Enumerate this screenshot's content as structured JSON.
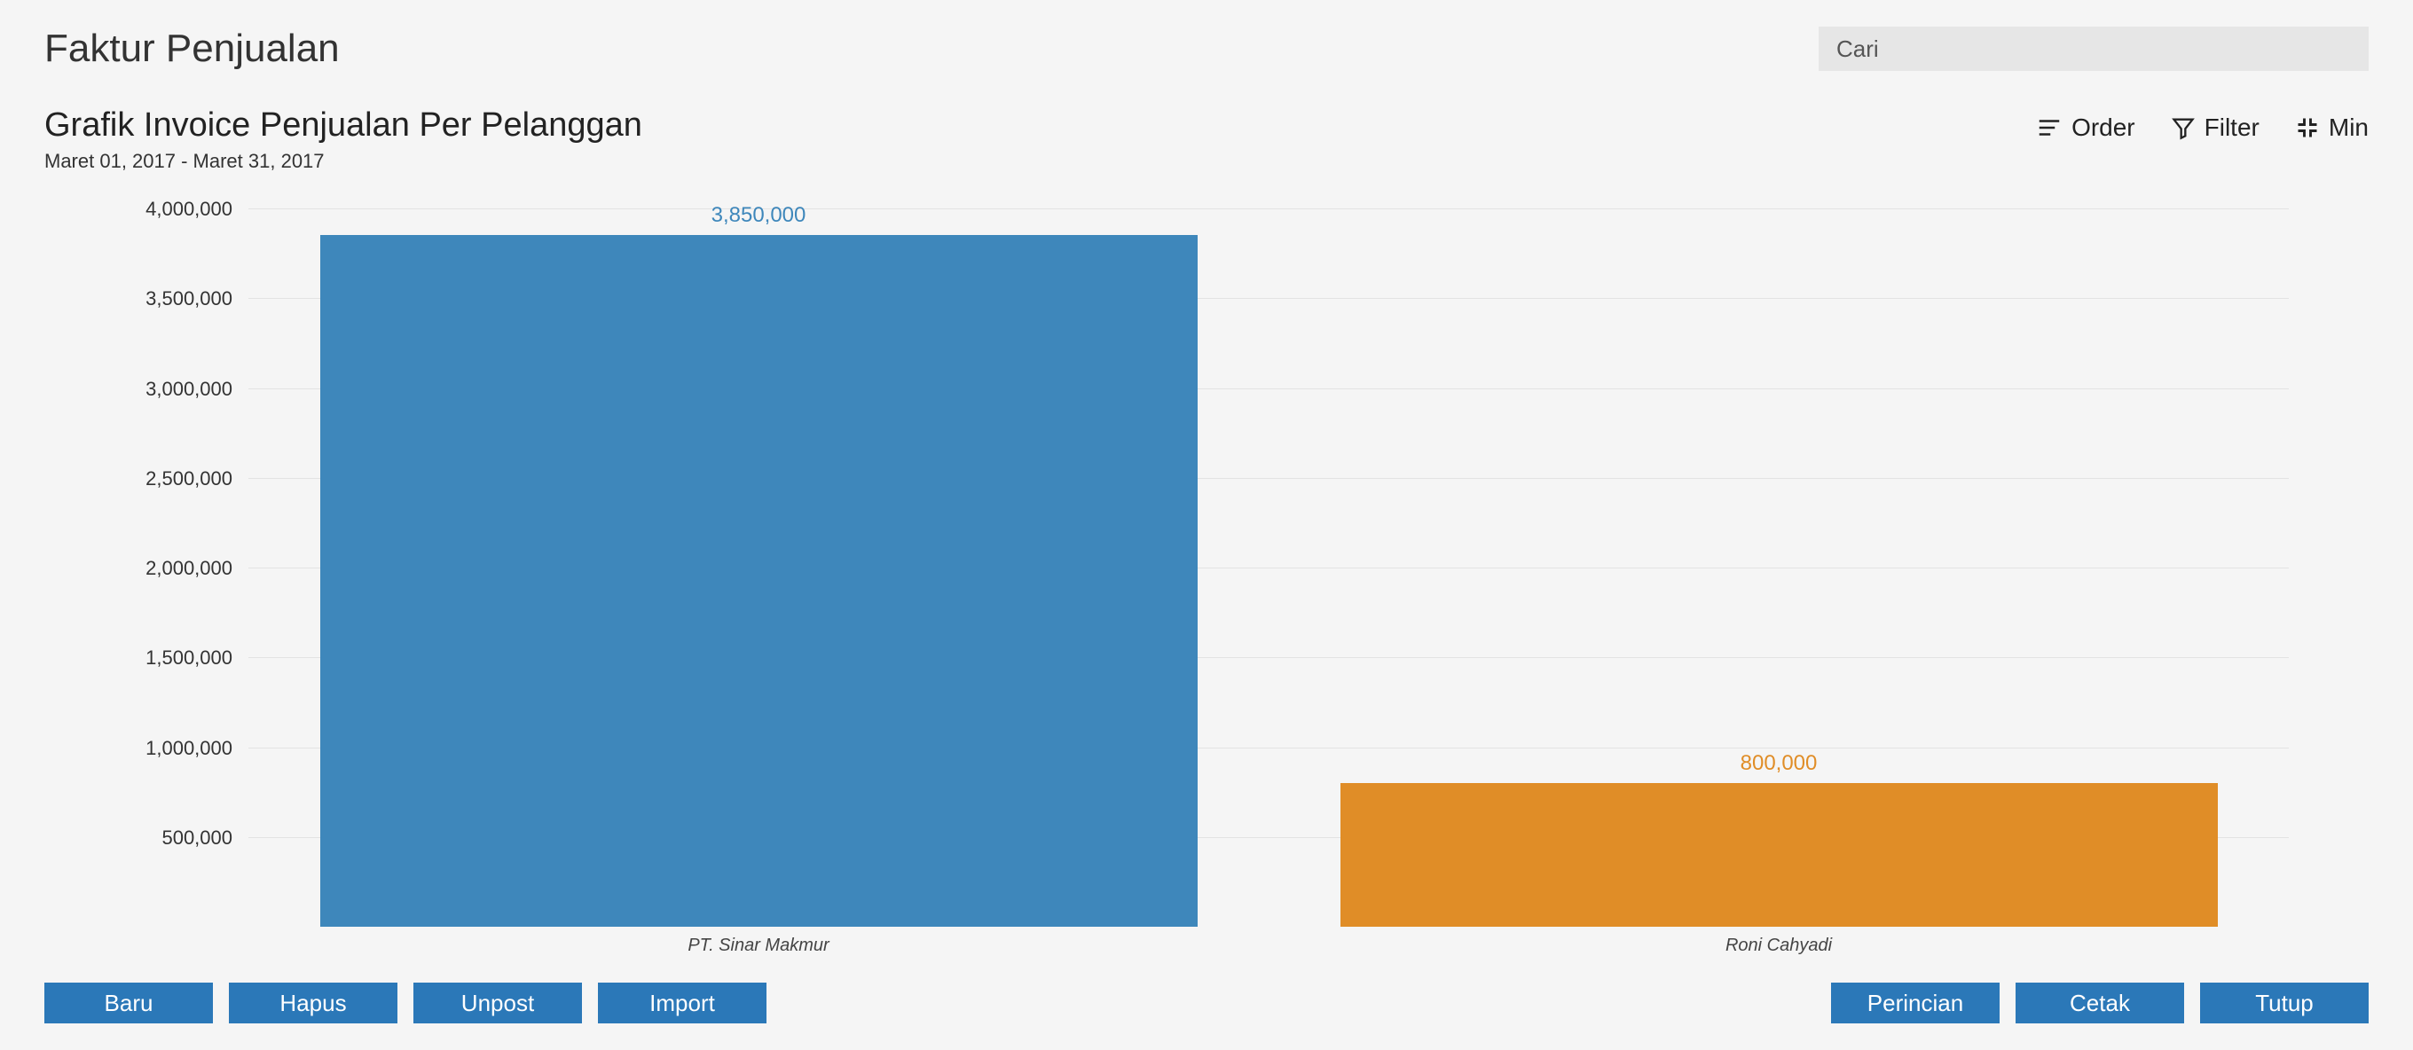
{
  "header": {
    "page_title": "Faktur Penjualan",
    "search_placeholder": "Cari",
    "chart_title": "Grafik Invoice Penjualan Per Pelanggan",
    "date_range": "Maret 01, 2017 - Maret 31, 2017"
  },
  "toolbar": {
    "order": "Order",
    "filter": "Filter",
    "min": "Min"
  },
  "chart": {
    "type": "bar",
    "y_min": 0,
    "y_max": 4000000,
    "y_ticks": [
      500000,
      1000000,
      1500000,
      2000000,
      2500000,
      3000000,
      3500000,
      4000000
    ],
    "y_tick_labels": [
      "500,000",
      "1,000,000",
      "1,500,000",
      "2,000,000",
      "2,500,000",
      "3,000,000",
      "3,500,000",
      "4,000,000"
    ],
    "grid_color": "#e3e3e3",
    "background": "#f5f5f5",
    "value_label_fontsize": 24,
    "axis_label_fontsize": 22,
    "categories": [
      "PT. Sinar Makmur",
      "Roni Cahyadi"
    ],
    "values": [
      3850000,
      800000
    ],
    "value_labels": [
      "3,850,000",
      "800,000"
    ],
    "bar_colors": [
      "#3e87bb",
      "#e08d27"
    ],
    "value_label_colors": [
      "#3e87bb",
      "#e08d27"
    ],
    "bar_inset_pct": 7
  },
  "buttons": {
    "left": [
      "Baru",
      "Hapus",
      "Unpost",
      "Import"
    ],
    "right": [
      "Perincian",
      "Cetak",
      "Tutup"
    ],
    "bg_color": "#2b78b8",
    "text_color": "#ffffff"
  }
}
